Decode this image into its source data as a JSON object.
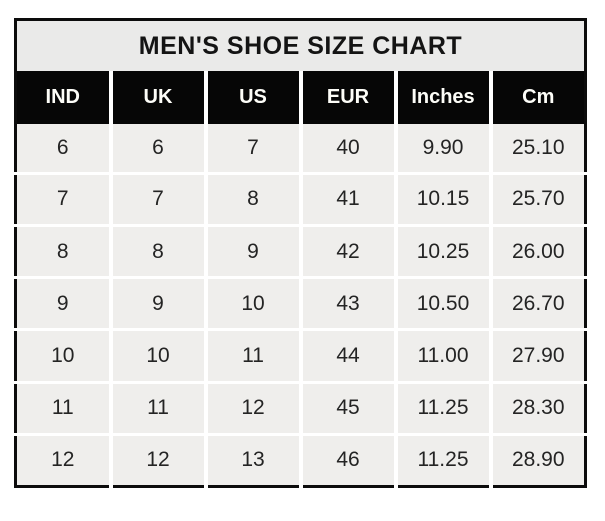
{
  "chart_data": {
    "type": "table",
    "title": "MEN'S SHOE SIZE CHART",
    "columns": [
      "IND",
      "UK",
      "US",
      "EUR",
      "Inches",
      "Cm"
    ],
    "rows": [
      [
        "6",
        "6",
        "7",
        "40",
        "9.90",
        "25.10"
      ],
      [
        "7",
        "7",
        "8",
        "41",
        "10.15",
        "25.70"
      ],
      [
        "8",
        "8",
        "9",
        "42",
        "10.25",
        "26.00"
      ],
      [
        "9",
        "9",
        "10",
        "43",
        "10.50",
        "26.70"
      ],
      [
        "10",
        "10",
        "11",
        "44",
        "11.00",
        "27.90"
      ],
      [
        "11",
        "11",
        "12",
        "45",
        "11.25",
        "28.30"
      ],
      [
        "12",
        "12",
        "13",
        "46",
        "11.25",
        "28.90"
      ]
    ],
    "layout": {
      "grid": "white gridlines between cells",
      "legend": "none"
    }
  },
  "colors": {
    "outer_border": "#0c0c0c",
    "title_background": "#eaeae9",
    "header_background": "#060606",
    "header_text": "#fdfdf8",
    "cell_background": "#efeeec",
    "cell_text": "#242424",
    "gridline": "#ffffff",
    "page_background": "#ffffff"
  }
}
